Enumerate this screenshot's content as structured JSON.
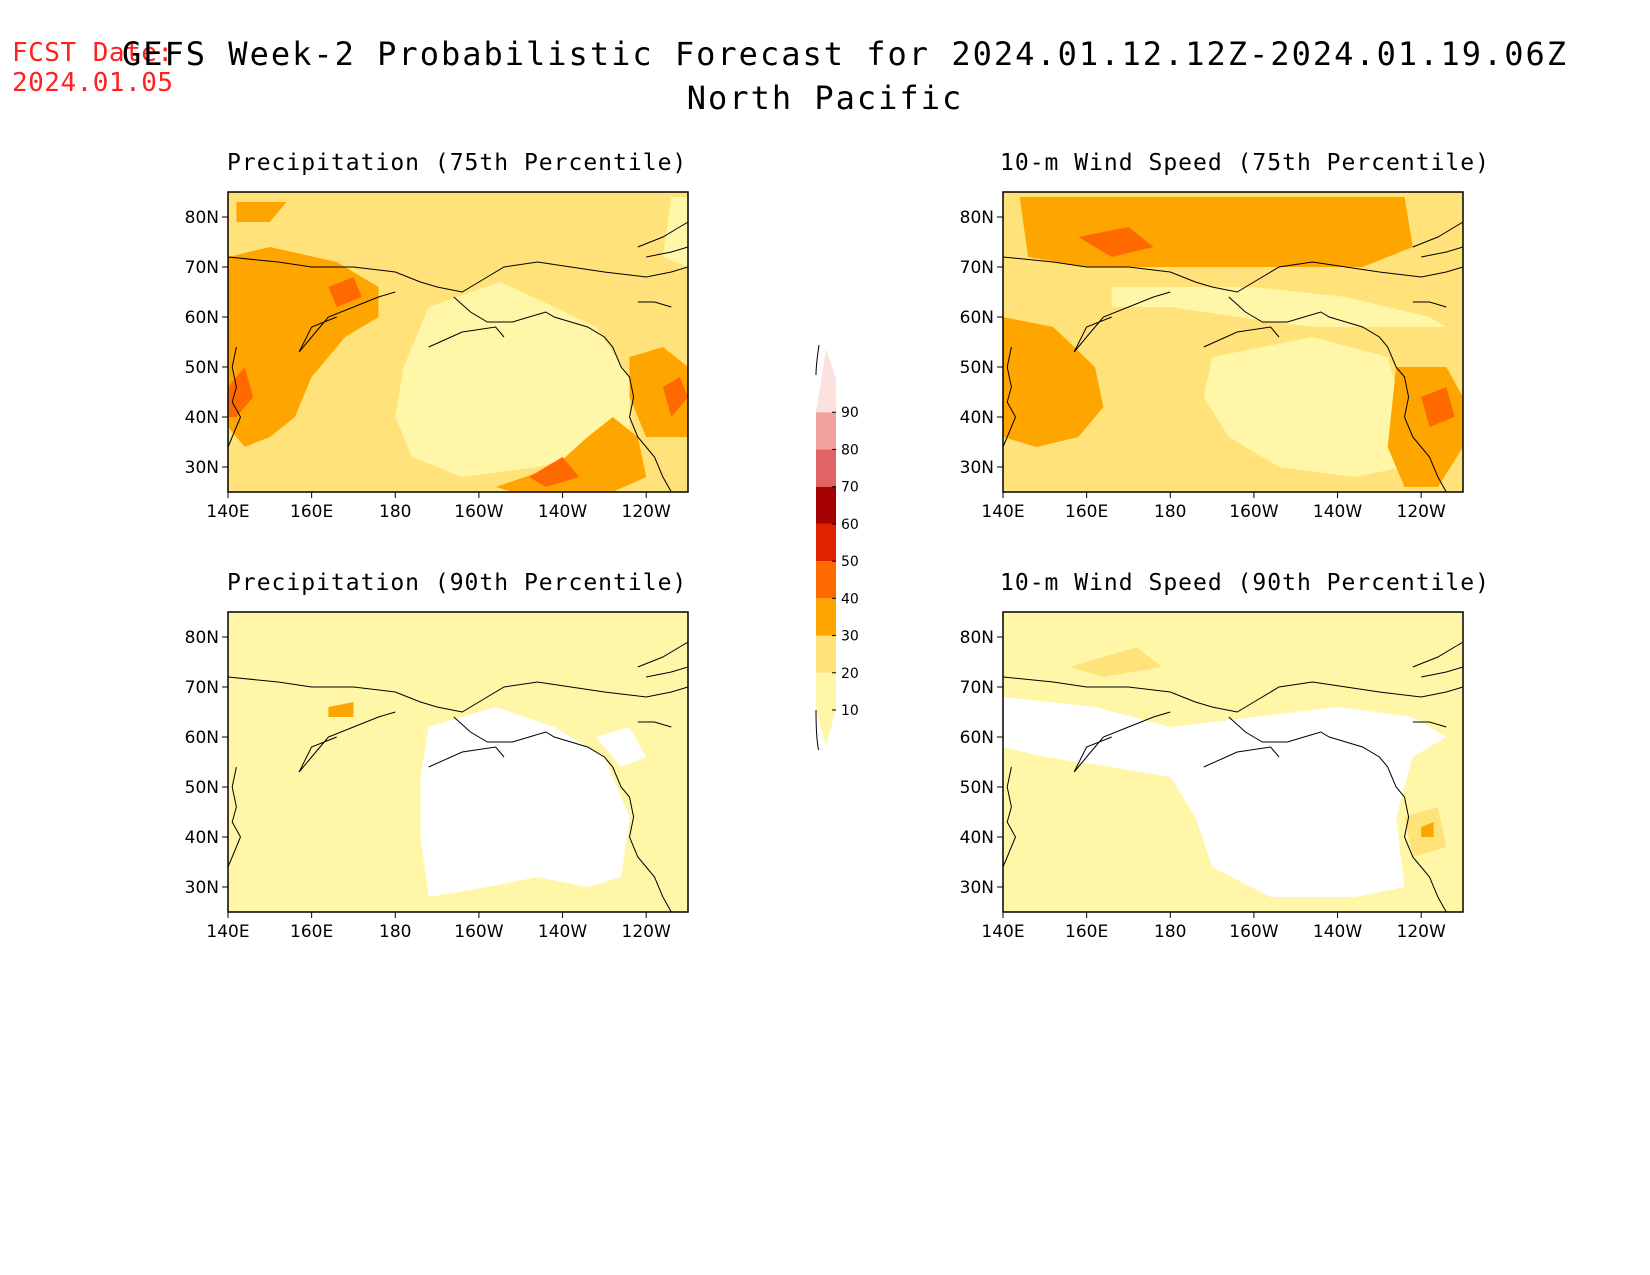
{
  "header": {
    "fcst_label": "FCST Date:",
    "fcst_date": "2024.01.05",
    "title_line1": "GEFS Week-2 Probabilistic Forecast for 2024.01.12.12Z-2024.01.19.06Z",
    "title_line2": "North Pacific"
  },
  "panels": [
    {
      "title": "Precipitation (75th Percentile)",
      "variable": "precipitation",
      "percentile": 75
    },
    {
      "title": "10-m Wind Speed (75th Percentile)",
      "variable": "wind",
      "percentile": 75
    },
    {
      "title": "Precipitation (90th Percentile)",
      "variable": "precipitation",
      "percentile": 90
    },
    {
      "title": "10-m Wind Speed (90th Percentile)",
      "variable": "wind",
      "percentile": 90
    }
  ],
  "axes": {
    "lat_labels": [
      "80N",
      "70N",
      "60N",
      "50N",
      "40N",
      "30N"
    ],
    "lat_values": [
      80,
      70,
      60,
      50,
      40,
      30
    ],
    "lon_labels": [
      "140E",
      "160E",
      "180",
      "160W",
      "140W",
      "120W"
    ],
    "lon_values": [
      140,
      160,
      180,
      200,
      220,
      240
    ],
    "lat_range": [
      25,
      85
    ],
    "lon_range": [
      140,
      250
    ]
  },
  "colorbar": {
    "labels": [
      "10",
      "20",
      "30",
      "40",
      "50",
      "60",
      "70",
      "80",
      "90"
    ],
    "colors": [
      "#fff6a8",
      "#ffe27a",
      "#ffa500",
      "#ff6a00",
      "#e12200",
      "#a50000",
      "#e06464",
      "#f2a0a0",
      "#fde0e0"
    ]
  }
}
